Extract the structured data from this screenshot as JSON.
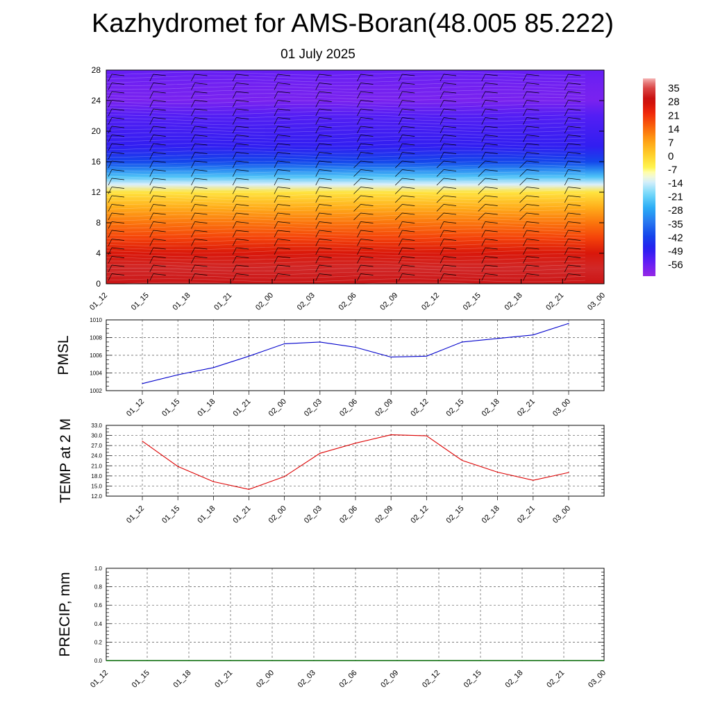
{
  "title": "Kazhydromet for AMS-Boran(48.005 85.222)",
  "subtitle": "01 July 2025",
  "chart_data": [
    {
      "type": "heatmap",
      "x_ticks": [
        "01_12",
        "01_15",
        "01_18",
        "01_21",
        "02_00",
        "02_03",
        "02_06",
        "02_09",
        "02_12",
        "02_15",
        "02_18",
        "02_21",
        "03_00"
      ],
      "y_ticks": [
        "0",
        "4",
        "8",
        "12",
        "16",
        "20",
        "24",
        "28"
      ],
      "ylim": [
        0,
        28
      ],
      "colorbar": {
        "labels": [
          "35",
          "28",
          "21",
          "14",
          "7",
          "0",
          "-7",
          "-14",
          "-21",
          "-28",
          "-35",
          "-42",
          "-49",
          "-56"
        ],
        "range": [
          -63,
          39
        ]
      },
      "profile": [
        {
          "y": 0,
          "value": 29
        },
        {
          "y": 2,
          "value": 31
        },
        {
          "y": 4,
          "value": 25
        },
        {
          "y": 6,
          "value": 18
        },
        {
          "y": 8,
          "value": 12
        },
        {
          "y": 10,
          "value": 5
        },
        {
          "y": 12,
          "value": -4
        },
        {
          "y": 13,
          "value": -14
        },
        {
          "y": 14,
          "value": -24
        },
        {
          "y": 15,
          "value": -33
        },
        {
          "y": 16,
          "value": -42
        },
        {
          "y": 18,
          "value": -50
        },
        {
          "y": 20,
          "value": -52
        },
        {
          "y": 22,
          "value": -54
        },
        {
          "y": 24,
          "value": -59
        },
        {
          "y": 26,
          "value": -58
        },
        {
          "y": 28,
          "value": -56
        }
      ],
      "wind_barbs": true
    },
    {
      "type": "line",
      "ylabel": "PMSL",
      "x": [
        "01_12",
        "01_15",
        "01_18",
        "01_21",
        "02_00",
        "02_03",
        "02_06",
        "02_09",
        "02_12",
        "02_15",
        "02_18",
        "02_21",
        "03_00"
      ],
      "ylim": [
        1002,
        1010
      ],
      "y_ticks": [
        "1002",
        "1004",
        "1006",
        "1008",
        "1010"
      ],
      "values": [
        1002.8,
        1003.8,
        1004.6,
        1005.9,
        1007.3,
        1007.5,
        1006.9,
        1005.8,
        1005.9,
        1007.5,
        1007.9,
        1008.3,
        1009.6
      ],
      "color": "#0000cc",
      "grid": true
    },
    {
      "type": "line",
      "ylabel": "TEMP at 2 M",
      "x": [
        "01_12",
        "01_15",
        "01_18",
        "01_21",
        "02_00",
        "02_03",
        "02_06",
        "02_09",
        "02_12",
        "02_15",
        "02_18",
        "02_21",
        "03_00"
      ],
      "ylim": [
        12,
        33
      ],
      "y_ticks": [
        "12.0",
        "15.0",
        "18.0",
        "21.0",
        "24.0",
        "27.0",
        "30.0",
        "33.0"
      ],
      "values": [
        28.3,
        20.8,
        16.3,
        14.0,
        17.8,
        24.7,
        27.7,
        30.2,
        29.9,
        22.6,
        19.1,
        16.7,
        19.0
      ],
      "color": "#dd0000",
      "grid": true
    },
    {
      "type": "line",
      "ylabel": "PRECIP, mm",
      "x": [
        "01_12",
        "01_15",
        "01_18",
        "01_21",
        "02_00",
        "02_03",
        "02_06",
        "02_09",
        "02_12",
        "02_15",
        "02_18",
        "02_21",
        "03_00"
      ],
      "ylim": [
        0,
        1
      ],
      "y_ticks": [
        "0.0",
        "0.2",
        "0.4",
        "0.6",
        "0.8",
        "1.0"
      ],
      "values": [
        0,
        0,
        0,
        0,
        0,
        0,
        0,
        0,
        0,
        0,
        0,
        0,
        0
      ],
      "color": "#006600",
      "grid": true
    }
  ]
}
